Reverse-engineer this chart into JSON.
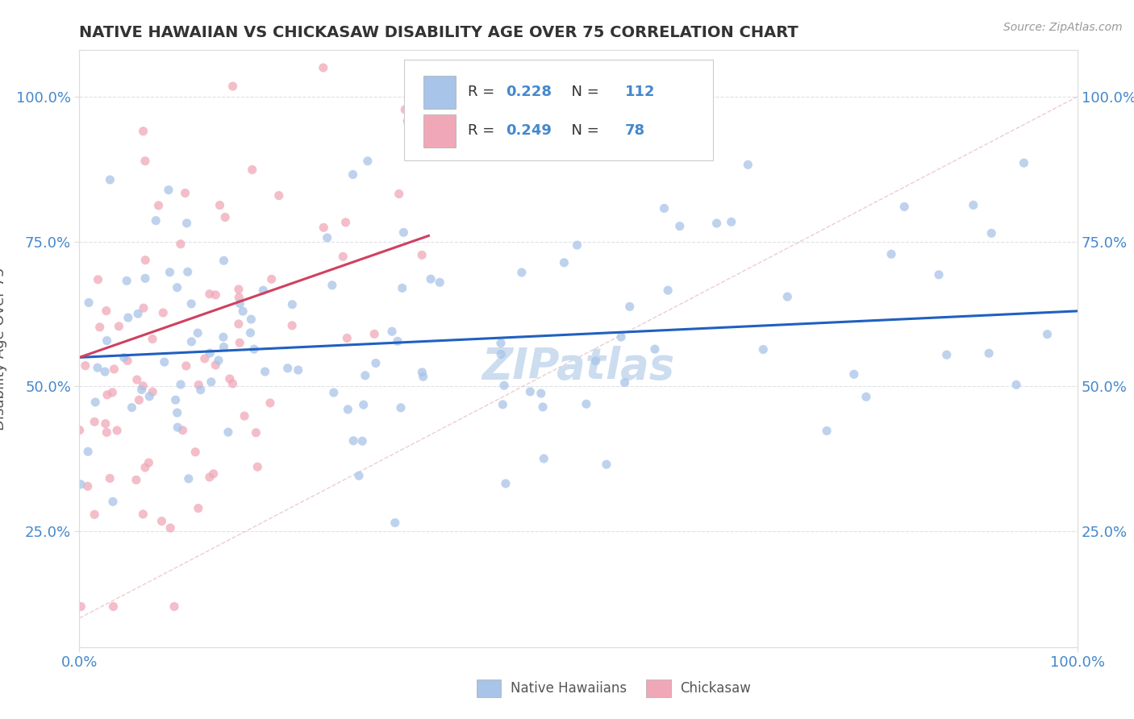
{
  "title": "NATIVE HAWAIIAN VS CHICKASAW DISABILITY AGE OVER 75 CORRELATION CHART",
  "source": "Source: ZipAtlas.com",
  "ylabel": "Disability Age Over 75",
  "x_range": [
    0,
    100
  ],
  "y_range": [
    5,
    108
  ],
  "y_ticks": [
    25,
    50,
    75,
    100
  ],
  "x_ticks": [
    0,
    100
  ],
  "legend_labels": [
    "Native Hawaiians",
    "Chickasaw"
  ],
  "R_blue": 0.228,
  "N_blue": 112,
  "R_pink": 0.249,
  "N_pink": 78,
  "blue_color": "#a8c4e8",
  "pink_color": "#f0a8b8",
  "blue_line_color": "#2060c0",
  "pink_line_color": "#d04060",
  "ref_line_color": "#e0b0b8",
  "axis_tick_color": "#4488cc",
  "ylabel_color": "#555555",
  "title_color": "#333333",
  "source_color": "#999999",
  "watermark": "ZIPatlas",
  "watermark_color": "#ccddf0",
  "grid_color": "#e0e0e8",
  "seed": 12345
}
